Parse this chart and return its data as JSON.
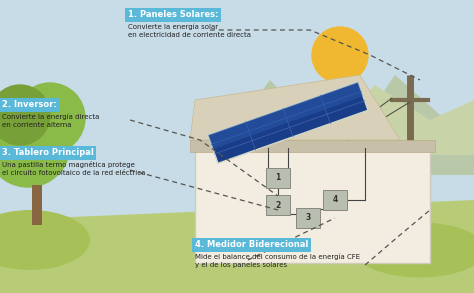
{
  "sky_color": "#c8dce8",
  "ground_color": "#b8cc78",
  "mountain_color_1": "#a8b888",
  "mountain_color_2": "#bcc898",
  "house_wall_color": "#f2ede0",
  "house_roof_color": "#c8bfa8",
  "roof_slope_color": "#d8d0b8",
  "panel_blue": "#1a3d8a",
  "panel_blue2": "#2a5aaa",
  "panel_frame": "#d0d8c8",
  "panel_line": "#4466aa",
  "tree_green": "#8aba48",
  "tree_dark": "#78a038",
  "trunk_color": "#886644",
  "sun_color": "#f0b830",
  "pole_color": "#7a6a50",
  "box_color": "#b8bfb0",
  "box_edge": "#888880",
  "wire_color": "#555548",
  "dashed_color": "#666660",
  "label_bg": "#5ab8d8",
  "label_title_color": "#ffffff",
  "label_text_color": "#333333",
  "ann1_title": "1. Paneles Solares:",
  "ann1_desc1": "Convierte la energía solar",
  "ann1_desc2": "en electricidad de corriente directa",
  "ann2_title": "2. Inversor:",
  "ann2_desc1": "Convierte la energía directa",
  "ann2_desc2": "en corriente alterna",
  "ann3_title": "3. Tablero Principal",
  "ann3_desc1": "Una pastilla termo magnética protege",
  "ann3_desc2": "el circuito fotovoltaico de la red eléctrica",
  "ann4_title": "4. Medidor Biderecional",
  "ann4_desc1": "Mide el balance del consumo de la energía CFE",
  "ann4_desc2": "y el de los paneles solares"
}
